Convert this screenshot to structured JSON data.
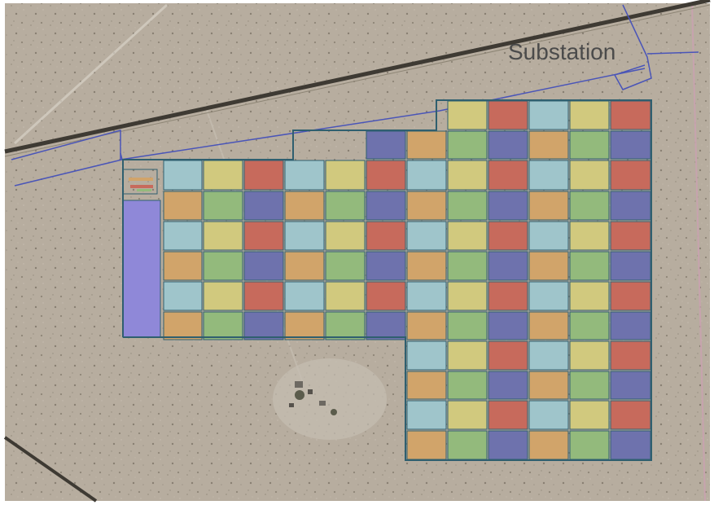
{
  "map": {
    "label_substation": "Substation"
  },
  "palette": {
    "blue": "#9fc5cb",
    "yellow": "#d1c97e",
    "red": "#c76a5c",
    "orange": "#d1a46a",
    "green": "#93ba7c",
    "purple": "#6e72ad",
    "ground": "#b6ab9e",
    "grid_line": "#2f5f6f",
    "fence_line": "#4a55b8",
    "road": "#3e3a33",
    "building": "#8f88d8"
  },
  "blocks": {
    "color_order": [
      [
        "blue",
        "yellow",
        "red",
        "blue",
        "yellow",
        "red",
        "blue",
        "yellow",
        "red",
        "blue",
        "yellow",
        "red"
      ],
      [
        "orange",
        "green",
        "purple",
        "orange",
        "green",
        "purple",
        "orange",
        "green",
        "purple",
        "orange",
        "green",
        "purple"
      ]
    ]
  }
}
